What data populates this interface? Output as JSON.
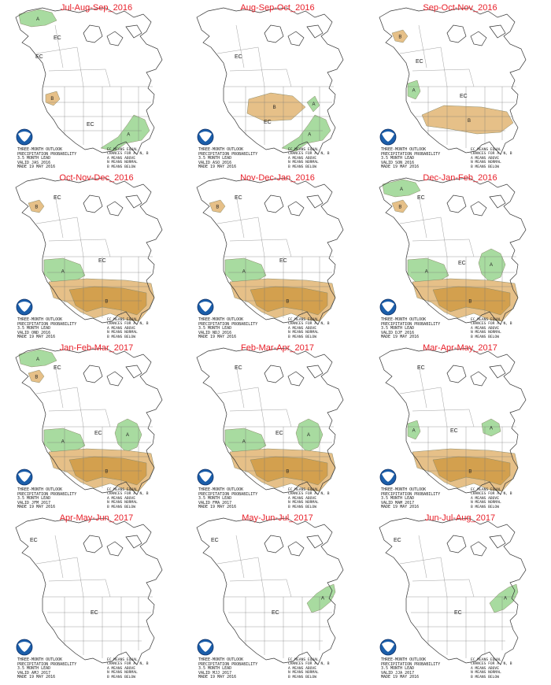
{
  "panels": [
    {
      "title": "Jul-Aug-Sep_2016",
      "valid": "VALID JAS 2016",
      "regions": [
        {
          "type": "A",
          "shape": "alaska-n"
        },
        {
          "type": "B",
          "shape": "pnw-small"
        },
        {
          "type": "A",
          "shape": "southeast"
        }
      ],
      "ec": [
        [
          58,
          48
        ],
        [
          35,
          72
        ],
        [
          100,
          158
        ]
      ]
    },
    {
      "title": "Aug-Sep-Oct_2016",
      "valid": "VALID ASO 2016",
      "regions": [
        {
          "type": "B",
          "shape": "central"
        },
        {
          "type": "A",
          "shape": "southeast"
        },
        {
          "type": "A",
          "shape": "ne-coast"
        }
      ],
      "ec": [
        [
          58,
          72
        ],
        [
          95,
          155
        ]
      ]
    },
    {
      "title": "Sep-Oct-Nov_2016",
      "valid": "VALID SON 2016",
      "regions": [
        {
          "type": "B",
          "shape": "alaska-s"
        },
        {
          "type": "A",
          "shape": "pnw-coast"
        },
        {
          "type": "B",
          "shape": "south-central"
        }
      ],
      "ec": [
        [
          56,
          78
        ],
        [
          112,
          122
        ]
      ]
    },
    {
      "title": "Oct-Nov-Dec_2016",
      "valid": "VALID OND 2016",
      "regions": [
        {
          "type": "B",
          "shape": "alaska-s"
        },
        {
          "type": "A",
          "shape": "northwest"
        },
        {
          "type": "B",
          "shape": "south-full"
        },
        {
          "type": "B2",
          "shape": "south-core"
        }
      ],
      "ec": [
        [
          58,
          35
        ],
        [
          115,
          115
        ]
      ]
    },
    {
      "title": "Nov-Dec-Jan_2016",
      "valid": "VALID NDJ 2016",
      "regions": [
        {
          "type": "B",
          "shape": "alaska-s"
        },
        {
          "type": "A",
          "shape": "northwest"
        },
        {
          "type": "B",
          "shape": "south-full"
        },
        {
          "type": "B2",
          "shape": "south-core"
        }
      ],
      "ec": [
        [
          58,
          35
        ],
        [
          115,
          115
        ]
      ]
    },
    {
      "title": "Dec-Jan-Feb_2016",
      "valid": "VALID DJF 2016",
      "regions": [
        {
          "type": "A",
          "shape": "alaska-n"
        },
        {
          "type": "B",
          "shape": "alaska-s"
        },
        {
          "type": "A",
          "shape": "northwest"
        },
        {
          "type": "A",
          "shape": "ohio"
        },
        {
          "type": "B",
          "shape": "south-full"
        },
        {
          "type": "B2",
          "shape": "south-core"
        }
      ],
      "ec": [
        [
          58,
          35
        ],
        [
          110,
          118
        ]
      ]
    },
    {
      "title": "Jan-Feb-Mar_2017",
      "valid": "VALID JFM 2017",
      "regions": [
        {
          "type": "A",
          "shape": "alaska-n"
        },
        {
          "type": "B",
          "shape": "alaska-s"
        },
        {
          "type": "A",
          "shape": "northwest"
        },
        {
          "type": "A",
          "shape": "ohio"
        },
        {
          "type": "B",
          "shape": "south-full"
        },
        {
          "type": "B2",
          "shape": "south-core"
        }
      ],
      "ec": [
        [
          58,
          35
        ],
        [
          110,
          118
        ]
      ]
    },
    {
      "title": "Feb-Mar-Apr_2017",
      "valid": "VALID FMA 2017",
      "regions": [
        {
          "type": "A",
          "shape": "northwest"
        },
        {
          "type": "A",
          "shape": "ohio"
        },
        {
          "type": "B",
          "shape": "south-full"
        },
        {
          "type": "B2",
          "shape": "south-core"
        }
      ],
      "ec": [
        [
          58,
          35
        ],
        [
          110,
          118
        ]
      ]
    },
    {
      "title": "Mar-Apr-May_2017",
      "valid": "VALID MAM 2017",
      "regions": [
        {
          "type": "A",
          "shape": "pnw-coast"
        },
        {
          "type": "A",
          "shape": "ohio-small"
        },
        {
          "type": "B",
          "shape": "south-full"
        },
        {
          "type": "B2",
          "shape": "south-core"
        }
      ],
      "ec": [
        [
          58,
          35
        ],
        [
          100,
          115
        ]
      ]
    },
    {
      "title": "Apr-May-Jun_2017",
      "valid": "VALID AMJ 2017",
      "regions": [],
      "ec": [
        [
          28,
          38
        ],
        [
          105,
          130
        ]
      ]
    },
    {
      "title": "May-Jun-Jul_2017",
      "valid": "VALID MJJ 2017",
      "regions": [
        {
          "type": "A",
          "shape": "northeast"
        }
      ],
      "ec": [
        [
          28,
          38
        ],
        [
          105,
          130
        ]
      ]
    },
    {
      "title": "Jun-Jul-Aug_2017",
      "valid": "VALID JJA 2017",
      "regions": [
        {
          "type": "A",
          "shape": "northeast"
        }
      ],
      "ec": [
        [
          28,
          38
        ],
        [
          105,
          130
        ]
      ]
    }
  ],
  "common": {
    "legend_lines": [
      "THREE-MONTH OUTLOOK",
      "PRECIPITATION PROBABILITY",
      "3.5 MONTH LEAD"
    ],
    "made": "MADE 19 MAY 2016",
    "key_lines": [
      "EC MEANS EQUAL",
      "CHANCES FOR A, N, B",
      "A MEANS ABOVE",
      "N MEANS NORMAL",
      "B MEANS BELOW"
    ],
    "ec_label": "EC",
    "above_label": "A",
    "below_label": "B"
  },
  "colors": {
    "above": "#a8dba0",
    "below": "#e6c088",
    "below_strong": "#d3a04e",
    "title": "#e8202a",
    "line": "#333333"
  },
  "icons": {
    "logo": "noaa-logo-icon"
  }
}
